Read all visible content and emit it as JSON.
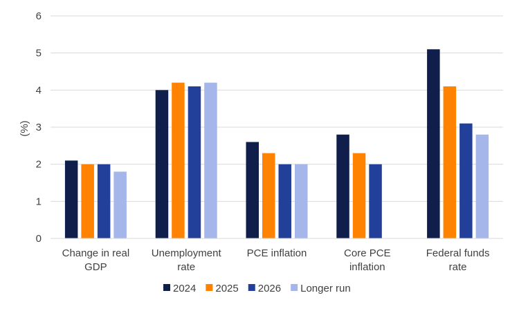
{
  "chart_data": {
    "type": "bar",
    "categories": [
      [
        "Change in real",
        "GDP"
      ],
      [
        "Unemployment",
        "rate"
      ],
      [
        "PCE inflation"
      ],
      [
        "Core PCE",
        "inflation"
      ],
      [
        "Federal funds",
        "rate"
      ]
    ],
    "series": [
      {
        "name": "2024",
        "color": "#0f1e4b",
        "values": [
          2.1,
          4.0,
          2.6,
          2.8,
          5.1
        ]
      },
      {
        "name": "2025",
        "color": "#ff8200",
        "values": [
          2.0,
          4.2,
          2.3,
          2.3,
          4.1
        ]
      },
      {
        "name": "2026",
        "color": "#22409a",
        "values": [
          2.0,
          4.1,
          2.0,
          2.0,
          3.1
        ]
      },
      {
        "name": "Longer run",
        "color": "#a4b6ea",
        "values": [
          1.8,
          4.2,
          2.0,
          null,
          2.8
        ]
      }
    ],
    "ylabel": "(%)",
    "ylim": [
      0,
      6
    ],
    "yticks": [
      0,
      1,
      2,
      3,
      4,
      5,
      6
    ],
    "grid": true,
    "legend": "bottom"
  }
}
